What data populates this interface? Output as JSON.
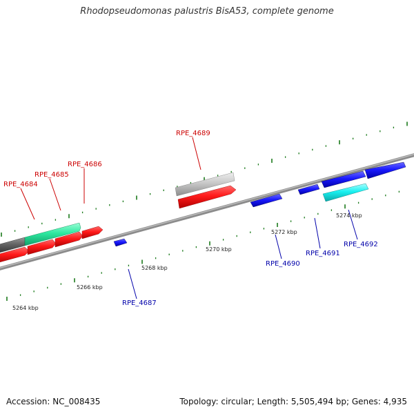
{
  "title": "Rhodopseudomonas palustris BisA53, complete genome",
  "footer": {
    "accession": "Accession: NC_008435",
    "summary": "Topology: circular; Length: 5,505,494 bp; Genes: 4,935"
  },
  "colors": {
    "forward_gene": "#ff1a1a",
    "reverse_gene": "#1a1aff",
    "cyan_gene": "#19f0f0",
    "green_gene": "#2ee8a0",
    "grey_gene": "#c8c8c8",
    "dark_gene": "#606060",
    "backbone": "#8c8c8c",
    "tick": "#1a7a1a",
    "forward_label": "#cc0000",
    "reverse_label": "#0000aa"
  },
  "scale_labels": [
    "5264 kbp",
    "5266 kbp",
    "5268 kbp",
    "5270 kbp",
    "5272 kbp",
    "5274 kbp"
  ],
  "forward_labels": [
    "RPE_4684",
    "RPE_4685",
    "RPE_4686",
    "RPE_4689"
  ],
  "reverse_labels": [
    "RPE_4687",
    "RPE_4690",
    "RPE_4691",
    "RPE_4692"
  ]
}
